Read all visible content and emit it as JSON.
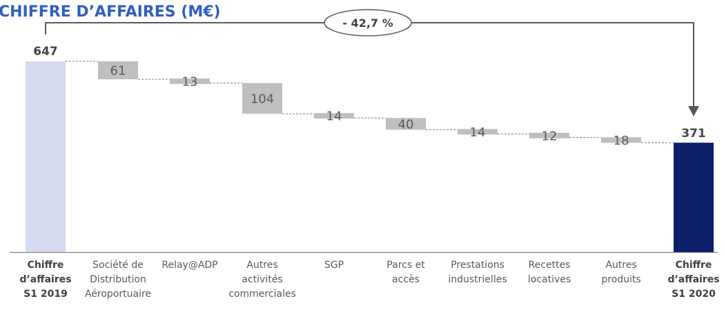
{
  "chart_data": {
    "type": "waterfall",
    "title": "CHIFFRE D’AFFAIRES (M€)",
    "change_badge": "- 42,7 %",
    "start": {
      "category_lines": [
        "Chiffre",
        "d’affaires",
        "S1 2019"
      ],
      "value": 647,
      "label": "647",
      "color": "#d5daf0"
    },
    "end": {
      "category_lines": [
        "Chiffre",
        "d’affaires",
        "S1 2020"
      ],
      "value": 371,
      "label": "371",
      "color": "#0d1f6b"
    },
    "steps": [
      {
        "category_lines": [
          "Société de",
          "Distribution",
          "Aéroportuaire"
        ],
        "value": -61,
        "label": "61"
      },
      {
        "category_lines": [
          "Relay@ADP"
        ],
        "value": -13,
        "label": "13"
      },
      {
        "category_lines": [
          "Autres",
          "activités",
          "commerciales"
        ],
        "value": -104,
        "label": "104"
      },
      {
        "category_lines": [
          "SGP"
        ],
        "value": -14,
        "label": "14"
      },
      {
        "category_lines": [
          "Parcs et",
          "accès"
        ],
        "value": -40,
        "label": "40"
      },
      {
        "category_lines": [
          "Prestations",
          "industrielles"
        ],
        "value": -14,
        "label": "14"
      },
      {
        "category_lines": [
          "Recettes",
          "locatives"
        ],
        "value": -12,
        "label": "12"
      },
      {
        "category_lines": [
          "Autres",
          "produits"
        ],
        "value": -18,
        "label": "18"
      }
    ],
    "step_color": "#bfbfbf",
    "connector_color": "#7f7f7f",
    "arrow_color": "#595959"
  }
}
